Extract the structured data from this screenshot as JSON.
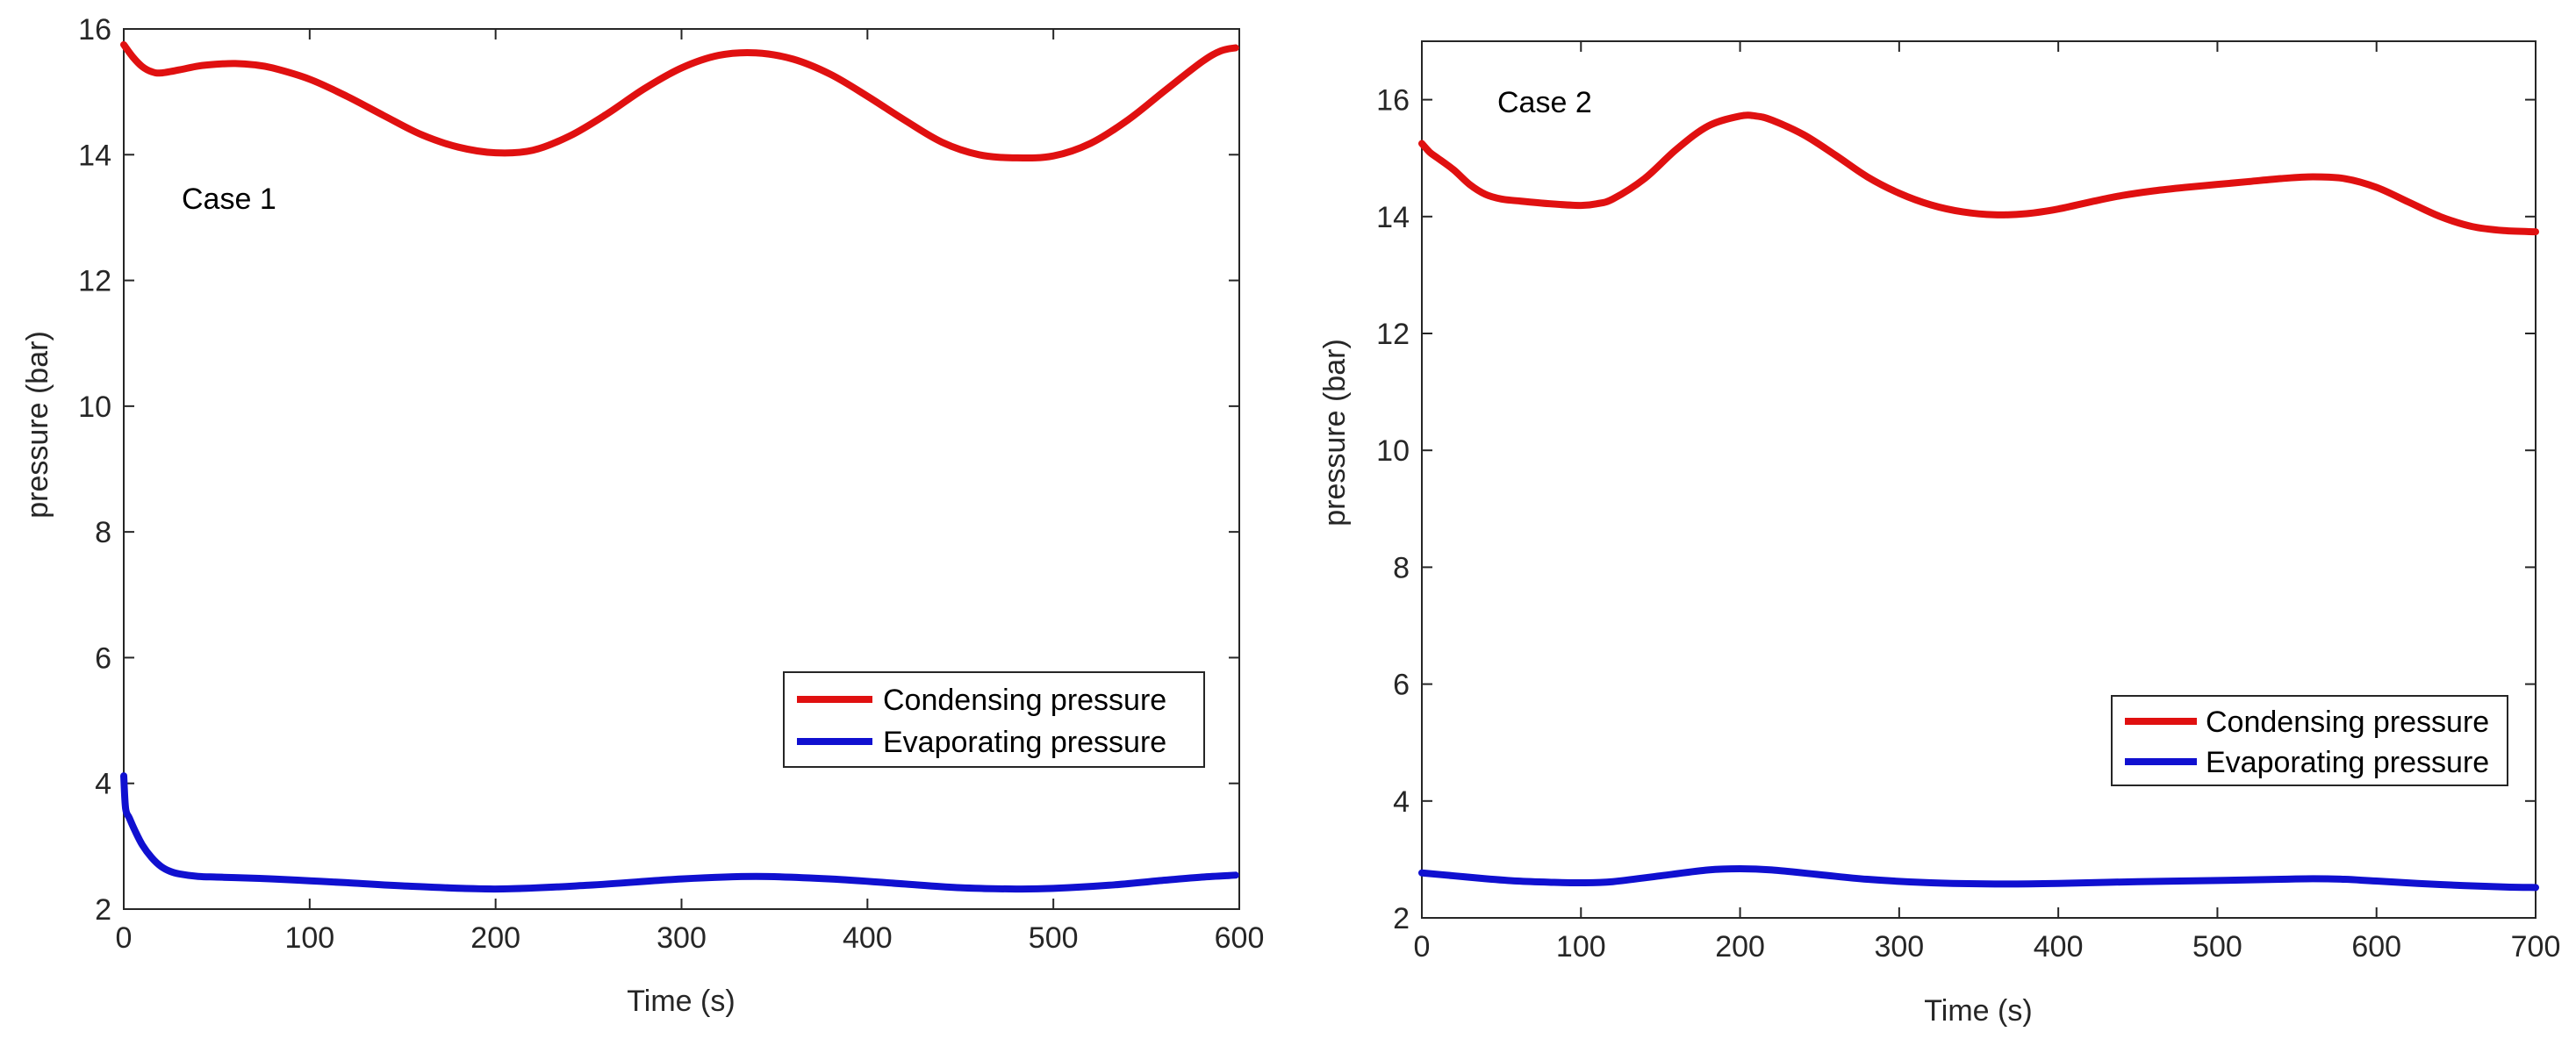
{
  "chart_data": [
    {
      "type": "line",
      "annotation": "Case 1",
      "xlabel": "Time (s)",
      "ylabel": "pressure (bar)",
      "xlim": [
        0,
        600
      ],
      "ylim": [
        2,
        16
      ],
      "xticks": [
        0,
        100,
        200,
        300,
        400,
        500,
        600
      ],
      "yticks": [
        2,
        4,
        6,
        8,
        10,
        12,
        14,
        16
      ],
      "grid": false,
      "legend_position": "lower-right",
      "series": [
        {
          "name": "Condensing pressure",
          "color": "#e01010",
          "x": [
            0,
            5,
            10,
            15,
            20,
            30,
            40,
            50,
            60,
            70,
            80,
            100,
            120,
            140,
            160,
            180,
            200,
            220,
            240,
            260,
            280,
            300,
            320,
            340,
            360,
            380,
            400,
            420,
            440,
            460,
            480,
            500,
            520,
            540,
            560,
            580,
            590,
            598
          ],
          "y": [
            15.75,
            15.55,
            15.4,
            15.32,
            15.3,
            15.35,
            15.41,
            15.44,
            15.45,
            15.43,
            15.38,
            15.2,
            14.93,
            14.62,
            14.32,
            14.12,
            14.03,
            14.07,
            14.3,
            14.65,
            15.05,
            15.38,
            15.58,
            15.62,
            15.52,
            15.28,
            14.93,
            14.55,
            14.2,
            14.0,
            13.95,
            13.98,
            14.18,
            14.55,
            15.02,
            15.48,
            15.65,
            15.7
          ]
        },
        {
          "name": "Evaporating pressure",
          "color": "#1010d0",
          "x": [
            0,
            1,
            3,
            6,
            10,
            15,
            20,
            25,
            30,
            40,
            50,
            60,
            80,
            100,
            120,
            150,
            200,
            250,
            300,
            340,
            380,
            420,
            450,
            480,
            500,
            530,
            560,
            580,
            598
          ],
          "y": [
            4.12,
            3.6,
            3.45,
            3.25,
            3.02,
            2.82,
            2.68,
            2.6,
            2.56,
            2.52,
            2.51,
            2.5,
            2.48,
            2.45,
            2.42,
            2.37,
            2.32,
            2.38,
            2.48,
            2.52,
            2.48,
            2.4,
            2.34,
            2.32,
            2.33,
            2.38,
            2.46,
            2.51,
            2.54
          ]
        }
      ]
    },
    {
      "type": "line",
      "annotation": "Case 2",
      "xlabel": "Time (s)",
      "ylabel": "pressure (bar)",
      "xlim": [
        0,
        700
      ],
      "ylim": [
        2,
        17
      ],
      "xticks": [
        0,
        100,
        200,
        300,
        400,
        500,
        600,
        700
      ],
      "yticks": [
        2,
        4,
        6,
        8,
        10,
        12,
        14,
        16
      ],
      "grid": false,
      "legend_position": "lower-right",
      "series": [
        {
          "name": "Condensing pressure",
          "color": "#e01010",
          "x": [
            0,
            5,
            10,
            20,
            30,
            40,
            50,
            60,
            80,
            100,
            110,
            120,
            140,
            160,
            180,
            200,
            210,
            220,
            240,
            260,
            280,
            300,
            320,
            340,
            360,
            380,
            400,
            420,
            440,
            460,
            480,
            500,
            520,
            540,
            560,
            580,
            600,
            620,
            640,
            660,
            680,
            700
          ],
          "y": [
            15.25,
            15.1,
            15.0,
            14.8,
            14.55,
            14.38,
            14.3,
            14.27,
            14.22,
            14.19,
            14.22,
            14.3,
            14.65,
            15.15,
            15.55,
            15.72,
            15.72,
            15.65,
            15.4,
            15.05,
            14.68,
            14.4,
            14.2,
            14.08,
            14.03,
            14.05,
            14.13,
            14.25,
            14.36,
            14.44,
            14.5,
            14.55,
            14.6,
            14.65,
            14.68,
            14.65,
            14.5,
            14.25,
            14.0,
            13.83,
            13.76,
            13.74
          ]
        },
        {
          "name": "Evaporating pressure",
          "color": "#1010d0",
          "x": [
            0,
            20,
            40,
            60,
            80,
            100,
            120,
            150,
            180,
            200,
            220,
            250,
            280,
            320,
            360,
            400,
            450,
            500,
            540,
            560,
            580,
            600,
            640,
            680,
            700
          ],
          "y": [
            2.77,
            2.72,
            2.67,
            2.63,
            2.61,
            2.6,
            2.62,
            2.72,
            2.82,
            2.84,
            2.82,
            2.74,
            2.66,
            2.6,
            2.58,
            2.59,
            2.62,
            2.64,
            2.66,
            2.67,
            2.66,
            2.63,
            2.57,
            2.53,
            2.52
          ]
        }
      ]
    }
  ]
}
